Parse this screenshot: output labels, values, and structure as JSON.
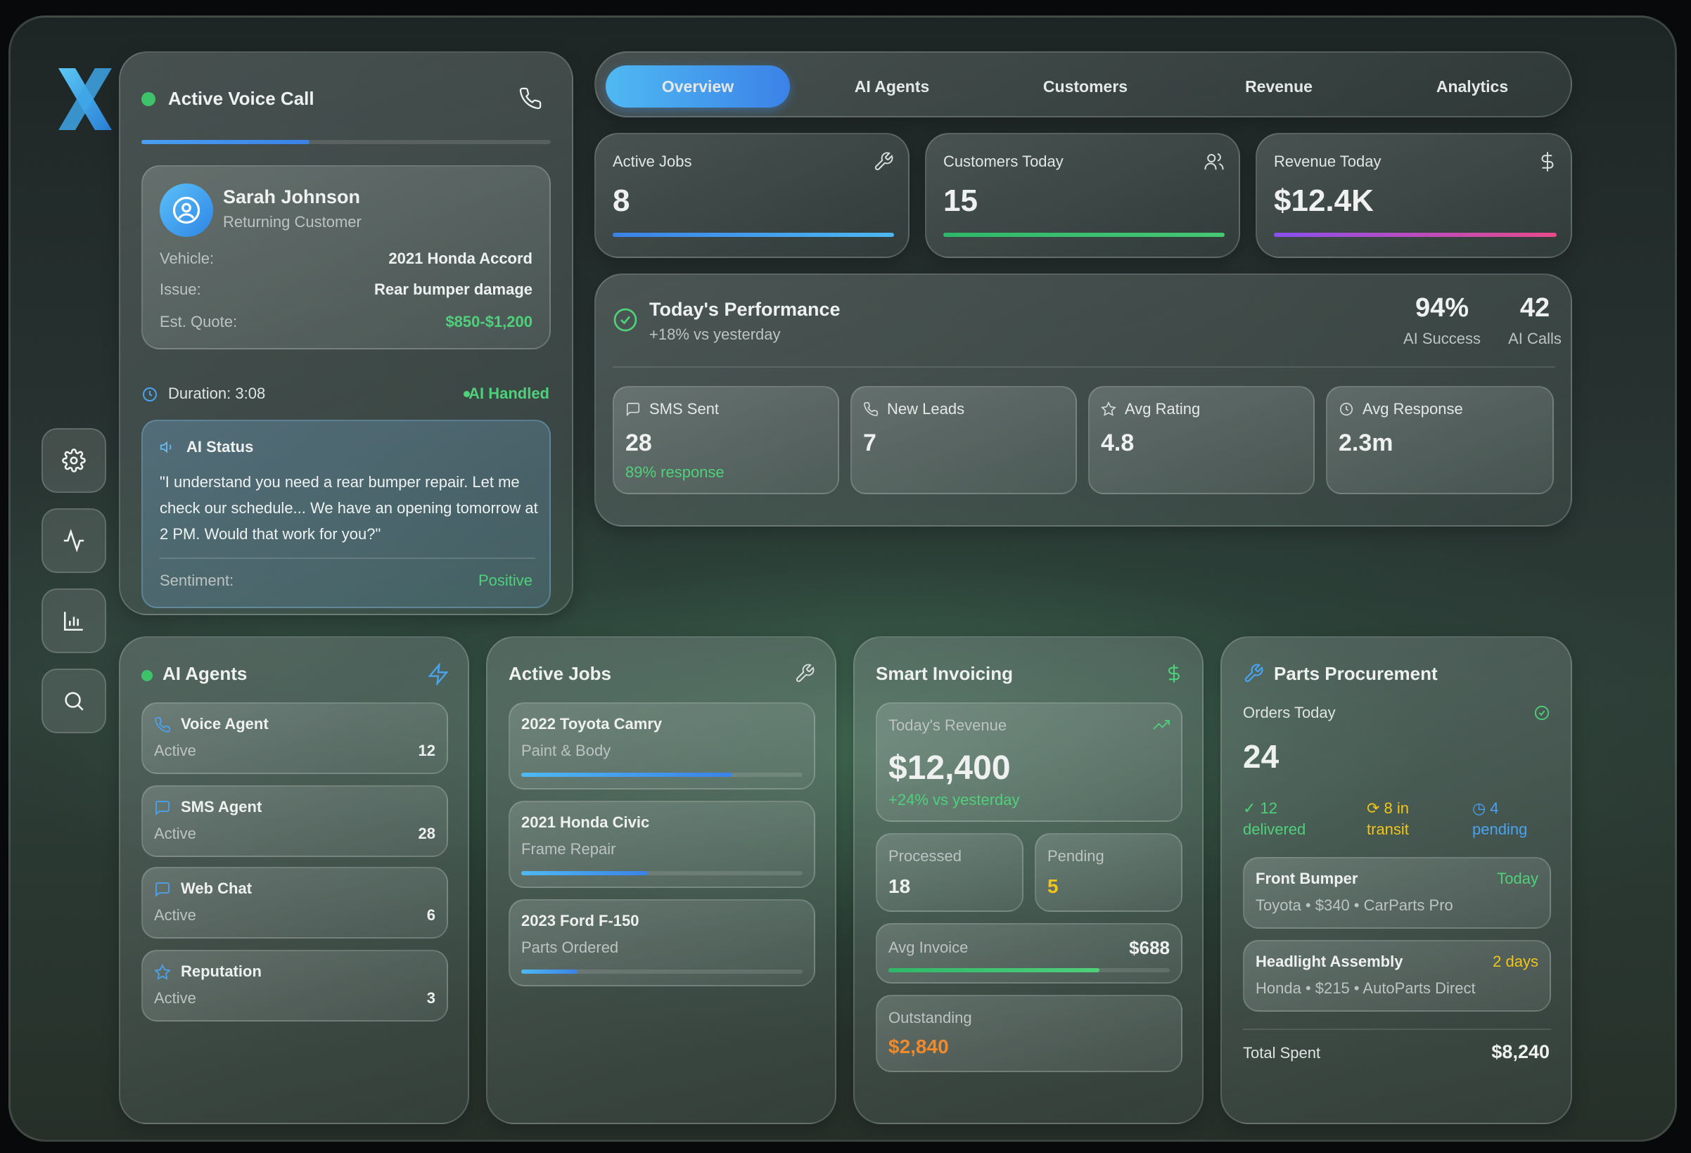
{
  "nav": {
    "tabs": [
      "Overview",
      "AI Agents",
      "Customers",
      "Revenue",
      "Analytics"
    ],
    "active": "Overview"
  },
  "call": {
    "title": "Active Voice Call",
    "progress": 0.41,
    "customer_name": "Sarah Johnson",
    "customer_type": "Returning Customer",
    "vehicle_label": "Vehicle:",
    "vehicle": "2021 Honda Accord",
    "issue_label": "Issue:",
    "issue": "Rear bumper damage",
    "quote_label": "Est. Quote:",
    "quote": "$850-$1,200",
    "duration": "Duration: 3:08",
    "handled": "AI Handled",
    "status_title": "AI Status",
    "status_text": "\"I understand you need a rear bumper repair. Let me check our schedule... We have an opening tomorrow at 2 PM. Would that work for you?\"",
    "sentiment_label": "Sentiment:",
    "sentiment": "Positive"
  },
  "stats": [
    {
      "label": "Active Jobs",
      "value": "8",
      "icon": "wrench-icon"
    },
    {
      "label": "Customers Today",
      "value": "15",
      "icon": "users-icon"
    },
    {
      "label": "Revenue Today",
      "value": "$12.4K",
      "icon": "dollar-icon"
    }
  ],
  "performance": {
    "title": "Today's Performance",
    "subtitle": "+18% vs yesterday",
    "success_value": "94%",
    "success_label": "AI Success",
    "calls_value": "42",
    "calls_label": "AI Calls",
    "metrics": [
      {
        "label": "SMS Sent",
        "value": "28",
        "note": "89% response",
        "icon": "message-icon"
      },
      {
        "label": "New Leads",
        "value": "7",
        "note": "",
        "icon": "phone-icon"
      },
      {
        "label": "Avg Rating",
        "value": "4.8",
        "note": "",
        "icon": "star-icon"
      },
      {
        "label": "Avg Response",
        "value": "2.3m",
        "note": "",
        "icon": "clock-icon"
      }
    ]
  },
  "agents": {
    "title": "AI Agents",
    "items": [
      {
        "name": "Voice Agent",
        "status": "Active",
        "count": "12",
        "icon": "phone-icon"
      },
      {
        "name": "SMS Agent",
        "status": "Active",
        "count": "28",
        "icon": "message-icon"
      },
      {
        "name": "Web Chat",
        "status": "Active",
        "count": "6",
        "icon": "message-icon"
      },
      {
        "name": "Reputation",
        "status": "Active",
        "count": "3",
        "icon": "star-icon"
      }
    ]
  },
  "jobs": {
    "title": "Active Jobs",
    "items": [
      {
        "vehicle": "2022 Toyota Camry",
        "type": "Paint & Body",
        "progress": 0.75
      },
      {
        "vehicle": "2021 Honda Civic",
        "type": "Frame Repair",
        "progress": 0.45
      },
      {
        "vehicle": "2023 Ford F-150",
        "type": "Parts Ordered",
        "progress": 0.2
      }
    ]
  },
  "invoicing": {
    "title": "Smart Invoicing",
    "revenue_label": "Today's Revenue",
    "revenue": "$12,400",
    "revenue_change": "+24% vs yesterday",
    "processed_label": "Processed",
    "processed": "18",
    "pending_label": "Pending",
    "pending": "5",
    "avg_label": "Avg Invoice",
    "avg": "$688",
    "avg_progress": 0.75,
    "outstanding_label": "Outstanding",
    "outstanding": "$2,840"
  },
  "parts": {
    "title": "Parts Procurement",
    "orders_label": "Orders Today",
    "orders": "24",
    "delivered_a": "✓ 12",
    "delivered_b": "delivered",
    "transit_a": "⟳ 8 in",
    "transit_b": "transit",
    "pending_a": "◷ 4",
    "pending_b": "pending",
    "items": [
      {
        "name": "Front Bumper",
        "when": "Today",
        "detail": "Toyota • $340 • CarParts Pro"
      },
      {
        "name": "Headlight Assembly",
        "when": "2 days",
        "detail": "Honda • $215 • AutoParts Direct"
      }
    ],
    "total_label": "Total Spent",
    "total": "$8,240"
  },
  "colors": {
    "accent_blue": "#3a9df0",
    "green": "#4fd07a",
    "orange": "#f08a2c",
    "yellow": "#f0c419"
  }
}
